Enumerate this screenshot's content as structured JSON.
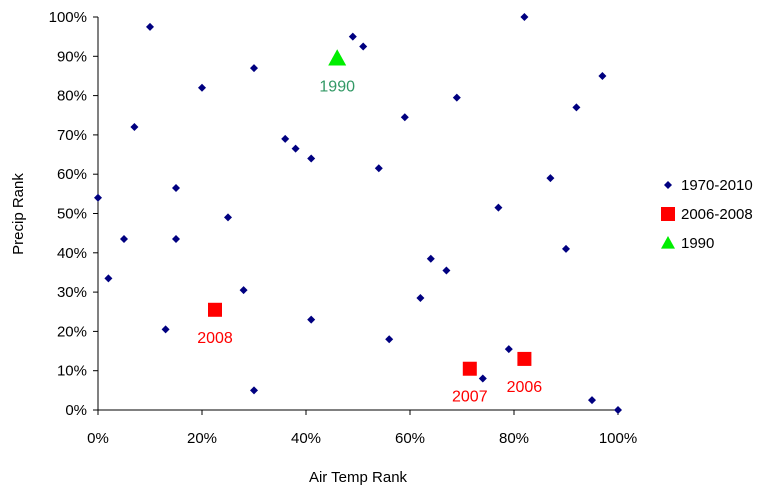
{
  "chart_data": {
    "type": "scatter",
    "xlabel": "Air Temp Rank",
    "ylabel": "Precip Rank",
    "xlim": [
      0,
      1
    ],
    "ylim": [
      0,
      1
    ],
    "x_ticks": [
      "0%",
      "20%",
      "40%",
      "60%",
      "80%",
      "100%"
    ],
    "y_ticks": [
      "0%",
      "10%",
      "20%",
      "30%",
      "40%",
      "50%",
      "60%",
      "70%",
      "80%",
      "90%",
      "100%"
    ],
    "grid": false,
    "legend_position": "right",
    "series": [
      {
        "name": "1970-2010",
        "marker": "diamond",
        "color": "#000080",
        "points": [
          [
            0.1,
            0.975
          ],
          [
            0.82,
            1.0
          ],
          [
            0.49,
            0.95
          ],
          [
            0.51,
            0.925
          ],
          [
            0.3,
            0.87
          ],
          [
            0.2,
            0.82
          ],
          [
            0.97,
            0.85
          ],
          [
            0.69,
            0.795
          ],
          [
            0.92,
            0.77
          ],
          [
            0.59,
            0.745
          ],
          [
            0.07,
            0.72
          ],
          [
            0.36,
            0.69
          ],
          [
            0.38,
            0.665
          ],
          [
            0.41,
            0.64
          ],
          [
            0.54,
            0.615
          ],
          [
            0.87,
            0.59
          ],
          [
            0.15,
            0.565
          ],
          [
            0.0,
            0.54
          ],
          [
            0.77,
            0.515
          ],
          [
            0.25,
            0.49
          ],
          [
            0.05,
            0.435
          ],
          [
            0.15,
            0.435
          ],
          [
            0.9,
            0.41
          ],
          [
            0.64,
            0.385
          ],
          [
            0.67,
            0.355
          ],
          [
            0.02,
            0.335
          ],
          [
            0.28,
            0.305
          ],
          [
            0.62,
            0.285
          ],
          [
            0.41,
            0.23
          ],
          [
            0.13,
            0.205
          ],
          [
            0.56,
            0.18
          ],
          [
            0.79,
            0.155
          ],
          [
            0.74,
            0.08
          ],
          [
            0.3,
            0.05
          ],
          [
            0.95,
            0.025
          ],
          [
            1.0,
            0.0
          ]
        ]
      },
      {
        "name": "2006-2008",
        "marker": "square",
        "color": "#ff0000",
        "points": [
          [
            0.225,
            0.255
          ],
          [
            0.715,
            0.105
          ],
          [
            0.82,
            0.13
          ]
        ],
        "labels": [
          "2008",
          "2007",
          "2006"
        ]
      },
      {
        "name": "1990",
        "marker": "triangle",
        "color": "#00ee00",
        "points": [
          [
            0.46,
            0.895
          ]
        ],
        "labels": [
          "1990"
        ]
      }
    ],
    "annotation_colors": {
      "2006-2008": "#ff0000",
      "1990": "#339966"
    }
  }
}
